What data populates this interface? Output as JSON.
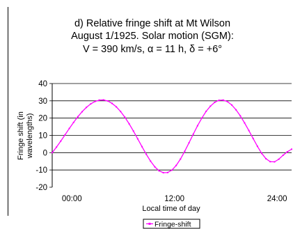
{
  "chart_data": {
    "type": "line",
    "title_lines": [
      "d) Relative fringe shift at Mt Wilson",
      "August 1/1925. Solar motion (SGM):",
      "V = 390 km/s, α = 11 h, δ = +6°"
    ],
    "xlabel": "Local time of day",
    "ylabel_lines": [
      "Fringe shift (in",
      "wavelengths)"
    ],
    "x_tick_labels": [
      {
        "x": 0,
        "label": "00:00"
      },
      {
        "x": 12,
        "label": "12:00"
      },
      {
        "x": 24,
        "label": "24:00"
      }
    ],
    "y_ticks": [
      -20,
      -10,
      0,
      10,
      20,
      30,
      40
    ],
    "xlim": [
      -2.3,
      25.7
    ],
    "ylim": [
      -20,
      40
    ],
    "grid": "horizontal",
    "legend_position": "bottom-center",
    "colors": {
      "series": "#ff00ff",
      "axis": "#000000"
    },
    "series": [
      {
        "name": "Fringe-shift",
        "x": [
          -2.3,
          -1.8,
          -1.3,
          -0.8,
          -0.3,
          0.2,
          0.7,
          1.2,
          1.7,
          2.2,
          2.7,
          3.2,
          3.7,
          4.2,
          4.7,
          5.2,
          5.7,
          6.2,
          6.7,
          7.2,
          7.7,
          8.2,
          8.7,
          9.2,
          9.7,
          10.2,
          10.7,
          11.2,
          11.7,
          12.2,
          12.7,
          13.2,
          13.7,
          14.2,
          14.7,
          15.2,
          15.7,
          16.2,
          16.7,
          17.2,
          17.7,
          18.2,
          18.7,
          19.2,
          19.7,
          20.2,
          20.7,
          21.2,
          21.7,
          22.2,
          22.7,
          23.2,
          23.7,
          24.2,
          24.7,
          25.2,
          25.7
        ],
        "y": [
          0.0,
          3.2,
          6.7,
          10.3,
          14.0,
          17.5,
          20.8,
          23.7,
          26.2,
          28.2,
          29.6,
          30.4,
          30.5,
          29.9,
          28.5,
          26.5,
          23.8,
          20.5,
          16.7,
          12.5,
          8.0,
          3.5,
          -0.9,
          -4.9,
          -8.2,
          -10.5,
          -11.6,
          -11.5,
          -10.1,
          -7.4,
          -3.7,
          0.8,
          5.7,
          10.7,
          15.6,
          20.0,
          23.9,
          26.9,
          29.1,
          30.3,
          30.4,
          29.5,
          27.6,
          24.8,
          21.3,
          17.2,
          12.8,
          8.2,
          3.7,
          -0.4,
          -3.5,
          -5.2,
          -5.3,
          -3.8,
          -1.5,
          0.5,
          2.0
        ]
      }
    ]
  }
}
